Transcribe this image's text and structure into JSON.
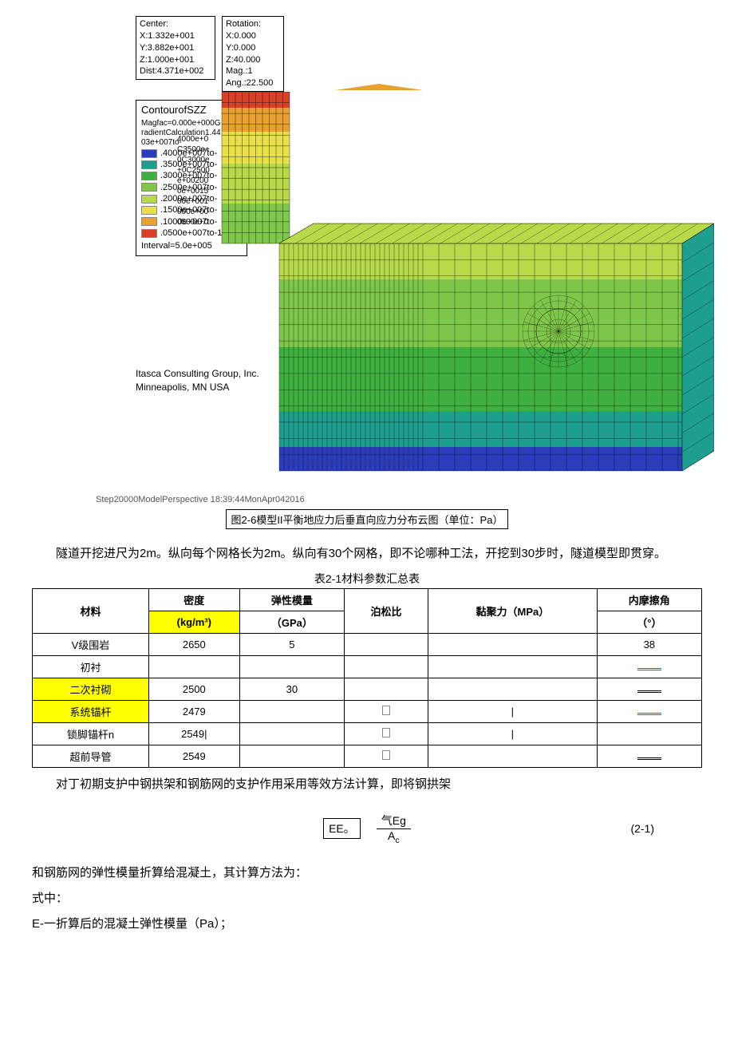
{
  "center_box": {
    "l1": "Center:",
    "l2": "X:1.332e+001",
    "l3": "Y:3.882e+001",
    "l4": "Z:1.000e+001",
    "l5": "Dist:4.371e+002"
  },
  "rotation_box": {
    "l1": "Rotation:",
    "l2": "X:0.000",
    "l3": "Y:0.000",
    "l4": "Z:40.000",
    "l5": "Mag.:1",
    "l6": "Ang.:22.500"
  },
  "legend": {
    "title": "ContourofSZZ",
    "sub": "Magfac=0.000e+000G\nradientCalculation1.44\n03e+007to-",
    "items": [
      {
        "label": ".4000e+007to-",
        "color": "#2b3db8"
      },
      {
        "label": ".3500e+007to-",
        "color": "#1e9e8e"
      },
      {
        "label": ".3000e+007to-",
        "color": "#3fb03f"
      },
      {
        "label": ".2500e+007to-",
        "color": "#7fc74a"
      },
      {
        "label": ".2000e+007to-",
        "color": "#b7d94a"
      },
      {
        "label": ".1500e+007to-",
        "color": "#e8e048"
      },
      {
        "label": ".1000e+007to-",
        "color": "#e8a030"
      },
      {
        "label": ".0500e+007to-1",
        "color": "#d84028"
      }
    ],
    "interval": "Interval=5.0e+005",
    "right_text": "4000e+0\nC3500e+\n0C3000e\n+0C2500\ne+00200\n0e+0015\n00e+001\n000e+00\n0500e+0"
  },
  "itasca": {
    "l1": "Itasca Consulting Group, Inc.",
    "l2": "Minneapolis, MN  USA"
  },
  "step_text": "Step20000ModelPerspective 18:39:44MonApr042016",
  "model_colors": {
    "top_column_top": "#d84028",
    "top_column_mid": "#e8a030",
    "top_column_low": "#b7d94a",
    "block_top": "#b7d94a",
    "block_mid": "#7fc74a",
    "block_low": "#3fb03f",
    "block_deep": "#1e9e8e",
    "block_bottom": "#2b3db8",
    "grid": "#0a0a0a"
  },
  "fig_caption": "图2-6模型II平衡地应力后垂直向应力分布云图（单位：Pa）",
  "para1": "隧道开挖进尺为2m。纵向每个网格长为2m。纵向有30个网格，即不论哪种工法，开挖到30步时，隧道模型即贯穿。",
  "table_caption": "表2-1材料参数汇总表",
  "table": {
    "headers": {
      "c1": "材料",
      "c2a": "密度",
      "c2b": "(kg/m³)",
      "c3a": "弹性模量",
      "c3b": "（GPa）",
      "c4": "泊松比",
      "c5": "黏聚力（MPa）",
      "c6a": "内摩擦角",
      "c6b": "（°）"
    },
    "rows": [
      {
        "c1": "V级围岩",
        "c2": "2650",
        "c3": "5",
        "c4": "",
        "c5": "",
        "c6": "38",
        "hl1": false
      },
      {
        "c1": "初衬",
        "c2": "",
        "c3": "",
        "c4": "",
        "c5": "",
        "c6": "dash",
        "hl1": false
      },
      {
        "c1": "二次衬砌",
        "c2": "2500",
        "c3": "30",
        "c4": "",
        "c5": "",
        "c6": "dbl",
        "hl1": true
      },
      {
        "c1": "系统锚杆",
        "c2": "2479",
        "c3": "",
        "c4": "box",
        "c5": "tick",
        "c6": "dash",
        "hl1": true
      },
      {
        "c1": "锁脚锚杆n",
        "c2": "2549|",
        "c3": "",
        "c4": "box",
        "c5": "tick",
        "c6": "",
        "hl1": false
      },
      {
        "c1": "超前导管",
        "c2": "2549",
        "c3": "",
        "c4": "box",
        "c5": "",
        "c6": "dbl",
        "hl1": false
      }
    ]
  },
  "para2": "对丁初期支护中钢拱架和钢筋网的支护作用采用等效方法计算，即将钢拱架",
  "formula": {
    "left": "EE。",
    "num": "气Eg",
    "den": "Ac",
    "tag": "(2-1)"
  },
  "para3": "和钢筋网的弹性模量折算给混凝土，其计算方法为：",
  "para4": "式中：",
  "para5": "E-一折算后的混凝土弹性模量（Pa）；"
}
